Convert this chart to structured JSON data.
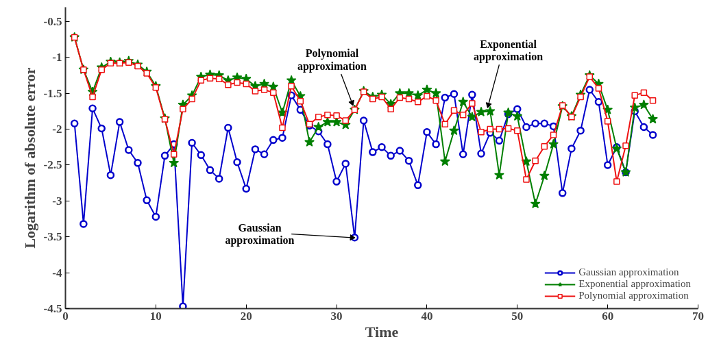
{
  "chart_data": {
    "type": "line",
    "xlabel": "Time",
    "ylabel": "Logarithm of absolute error",
    "x": [
      1,
      2,
      3,
      4,
      5,
      6,
      7,
      8,
      9,
      10,
      11,
      12,
      13,
      14,
      15,
      16,
      17,
      18,
      19,
      20,
      21,
      22,
      23,
      24,
      25,
      26,
      27,
      28,
      29,
      30,
      31,
      32,
      33,
      34,
      35,
      36,
      37,
      38,
      39,
      40,
      41,
      42,
      43,
      44,
      45,
      46,
      47,
      48,
      49,
      50,
      51,
      52,
      53,
      54,
      55,
      56,
      57,
      58,
      59,
      60,
      61,
      62,
      63,
      64,
      65
    ],
    "series": [
      {
        "name": "Gaussian approximation",
        "color": "#0000cc",
        "marker": "circle",
        "values": [
          -1.92,
          -3.32,
          -1.71,
          -1.99,
          -2.64,
          -1.9,
          -2.29,
          -2.47,
          -2.99,
          -3.22,
          -2.37,
          -2.21,
          -4.47,
          -2.19,
          -2.36,
          -2.57,
          -2.69,
          -1.98,
          -2.46,
          -2.83,
          -2.28,
          -2.35,
          -2.15,
          -2.12,
          -1.53,
          -1.73,
          -1.95,
          -2.03,
          -2.21,
          -2.73,
          -2.48,
          -3.51,
          -1.88,
          -2.32,
          -2.25,
          -2.37,
          -2.3,
          -2.44,
          -2.78,
          -2.04,
          -2.21,
          -1.56,
          -1.51,
          -2.35,
          -1.52,
          -2.34,
          -2.05,
          -2.16,
          -1.79,
          -1.72,
          -1.97,
          -1.92,
          -1.92,
          -1.96,
          -2.89,
          -2.27,
          -2.02,
          -1.45,
          -1.62,
          -2.5,
          -2.25,
          -2.6,
          -1.75,
          -1.97,
          -2.08
        ]
      },
      {
        "name": "Exponential approximation",
        "color": "#007f00",
        "marker": "star",
        "values": [
          -0.72,
          -1.17,
          -1.48,
          -1.14,
          -1.06,
          -1.07,
          -1.05,
          -1.1,
          -1.2,
          -1.4,
          -1.85,
          -2.47,
          -1.66,
          -1.53,
          -1.27,
          -1.24,
          -1.25,
          -1.32,
          -1.28,
          -1.3,
          -1.4,
          -1.37,
          -1.41,
          -1.77,
          -1.32,
          -1.54,
          -2.18,
          -1.97,
          -1.9,
          -1.9,
          -1.94,
          -1.73,
          -1.47,
          -1.55,
          -1.52,
          -1.65,
          -1.5,
          -1.5,
          -1.53,
          -1.45,
          -1.5,
          -2.45,
          -2.02,
          -1.62,
          -1.83,
          -1.76,
          -1.75,
          -2.64,
          -1.77,
          -1.82,
          -2.45,
          -3.04,
          -2.65,
          -2.21,
          -1.68,
          -1.82,
          -1.52,
          -1.25,
          -1.37,
          -1.73,
          -2.27,
          -2.6,
          -1.7,
          -1.66,
          -1.86
        ]
      },
      {
        "name": "Polynomial approximation",
        "color": "#ee1111",
        "marker": "square",
        "values": [
          -0.72,
          -1.17,
          -1.55,
          -1.17,
          -1.08,
          -1.08,
          -1.07,
          -1.12,
          -1.22,
          -1.42,
          -1.86,
          -2.35,
          -1.72,
          -1.58,
          -1.32,
          -1.29,
          -1.3,
          -1.38,
          -1.35,
          -1.37,
          -1.47,
          -1.45,
          -1.49,
          -1.98,
          -1.4,
          -1.61,
          -1.93,
          -1.83,
          -1.8,
          -1.81,
          -1.88,
          -1.73,
          -1.48,
          -1.58,
          -1.55,
          -1.72,
          -1.56,
          -1.58,
          -1.62,
          -1.54,
          -1.6,
          -1.93,
          -1.74,
          -1.8,
          -1.64,
          -2.04,
          -2.0,
          -2.0,
          -1.99,
          -2.02,
          -2.7,
          -2.44,
          -2.24,
          -2.08,
          -1.67,
          -1.83,
          -1.55,
          -1.27,
          -1.43,
          -1.89,
          -2.73,
          -2.23,
          -1.53,
          -1.49,
          -1.6
        ]
      }
    ],
    "annotations": [
      {
        "text": "Polynomial\napproximation",
        "x": 31.7,
        "y": -1.63
      },
      {
        "text": "Exponential\napproximation",
        "x": 46.8,
        "y": -1.66
      },
      {
        "text": "Gaussian\napproximation",
        "x": 32,
        "y": -3.51
      }
    ],
    "xlim": [
      0,
      70
    ],
    "xticks": [
      0,
      10,
      20,
      30,
      40,
      50,
      60,
      70
    ],
    "ylim": [
      -4.5,
      -0.3
    ],
    "yticks": [
      -4.5,
      -4,
      -3.5,
      -3,
      -2.5,
      -2,
      -1.5,
      -1,
      -0.5
    ],
    "grid": false,
    "legend": "bottom right",
    "line_style": "solid"
  }
}
